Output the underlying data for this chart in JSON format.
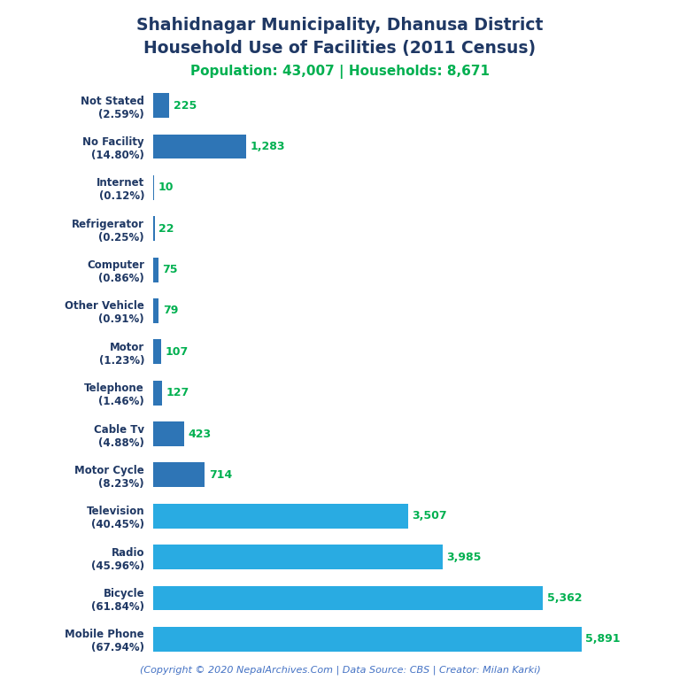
{
  "title_line1": "Shahidnagar Municipality, Dhanusa District",
  "title_line2": "Household Use of Facilities (2011 Census)",
  "subtitle": "Population: 43,007 | Households: 8,671",
  "categories": [
    "Not Stated\n(2.59%)",
    "No Facility\n(14.80%)",
    "Internet\n(0.12%)",
    "Refrigerator\n(0.25%)",
    "Computer\n(0.86%)",
    "Other Vehicle\n(0.91%)",
    "Motor\n(1.23%)",
    "Telephone\n(1.46%)",
    "Cable Tv\n(4.88%)",
    "Motor Cycle\n(8.23%)",
    "Television\n(40.45%)",
    "Radio\n(45.96%)",
    "Bicycle\n(61.84%)",
    "Mobile Phone\n(67.94%)"
  ],
  "values": [
    225,
    1283,
    10,
    22,
    75,
    79,
    107,
    127,
    423,
    714,
    3507,
    3985,
    5362,
    5891
  ],
  "bar_color_small": "#2e75b6",
  "bar_color_large": "#29abe2",
  "title_color": "#1f3864",
  "subtitle_color": "#00b050",
  "value_color": "#00b050",
  "label_color": "#1f3864",
  "copyright_text": "(Copyright © 2020 NepalArchives.Com | Data Source: CBS | Creator: Milan Karki)",
  "copyright_color": "#4472c4",
  "background_color": "#ffffff",
  "xlim": [
    0,
    6500
  ],
  "figsize": [
    7.68,
    7.68
  ],
  "dpi": 100
}
